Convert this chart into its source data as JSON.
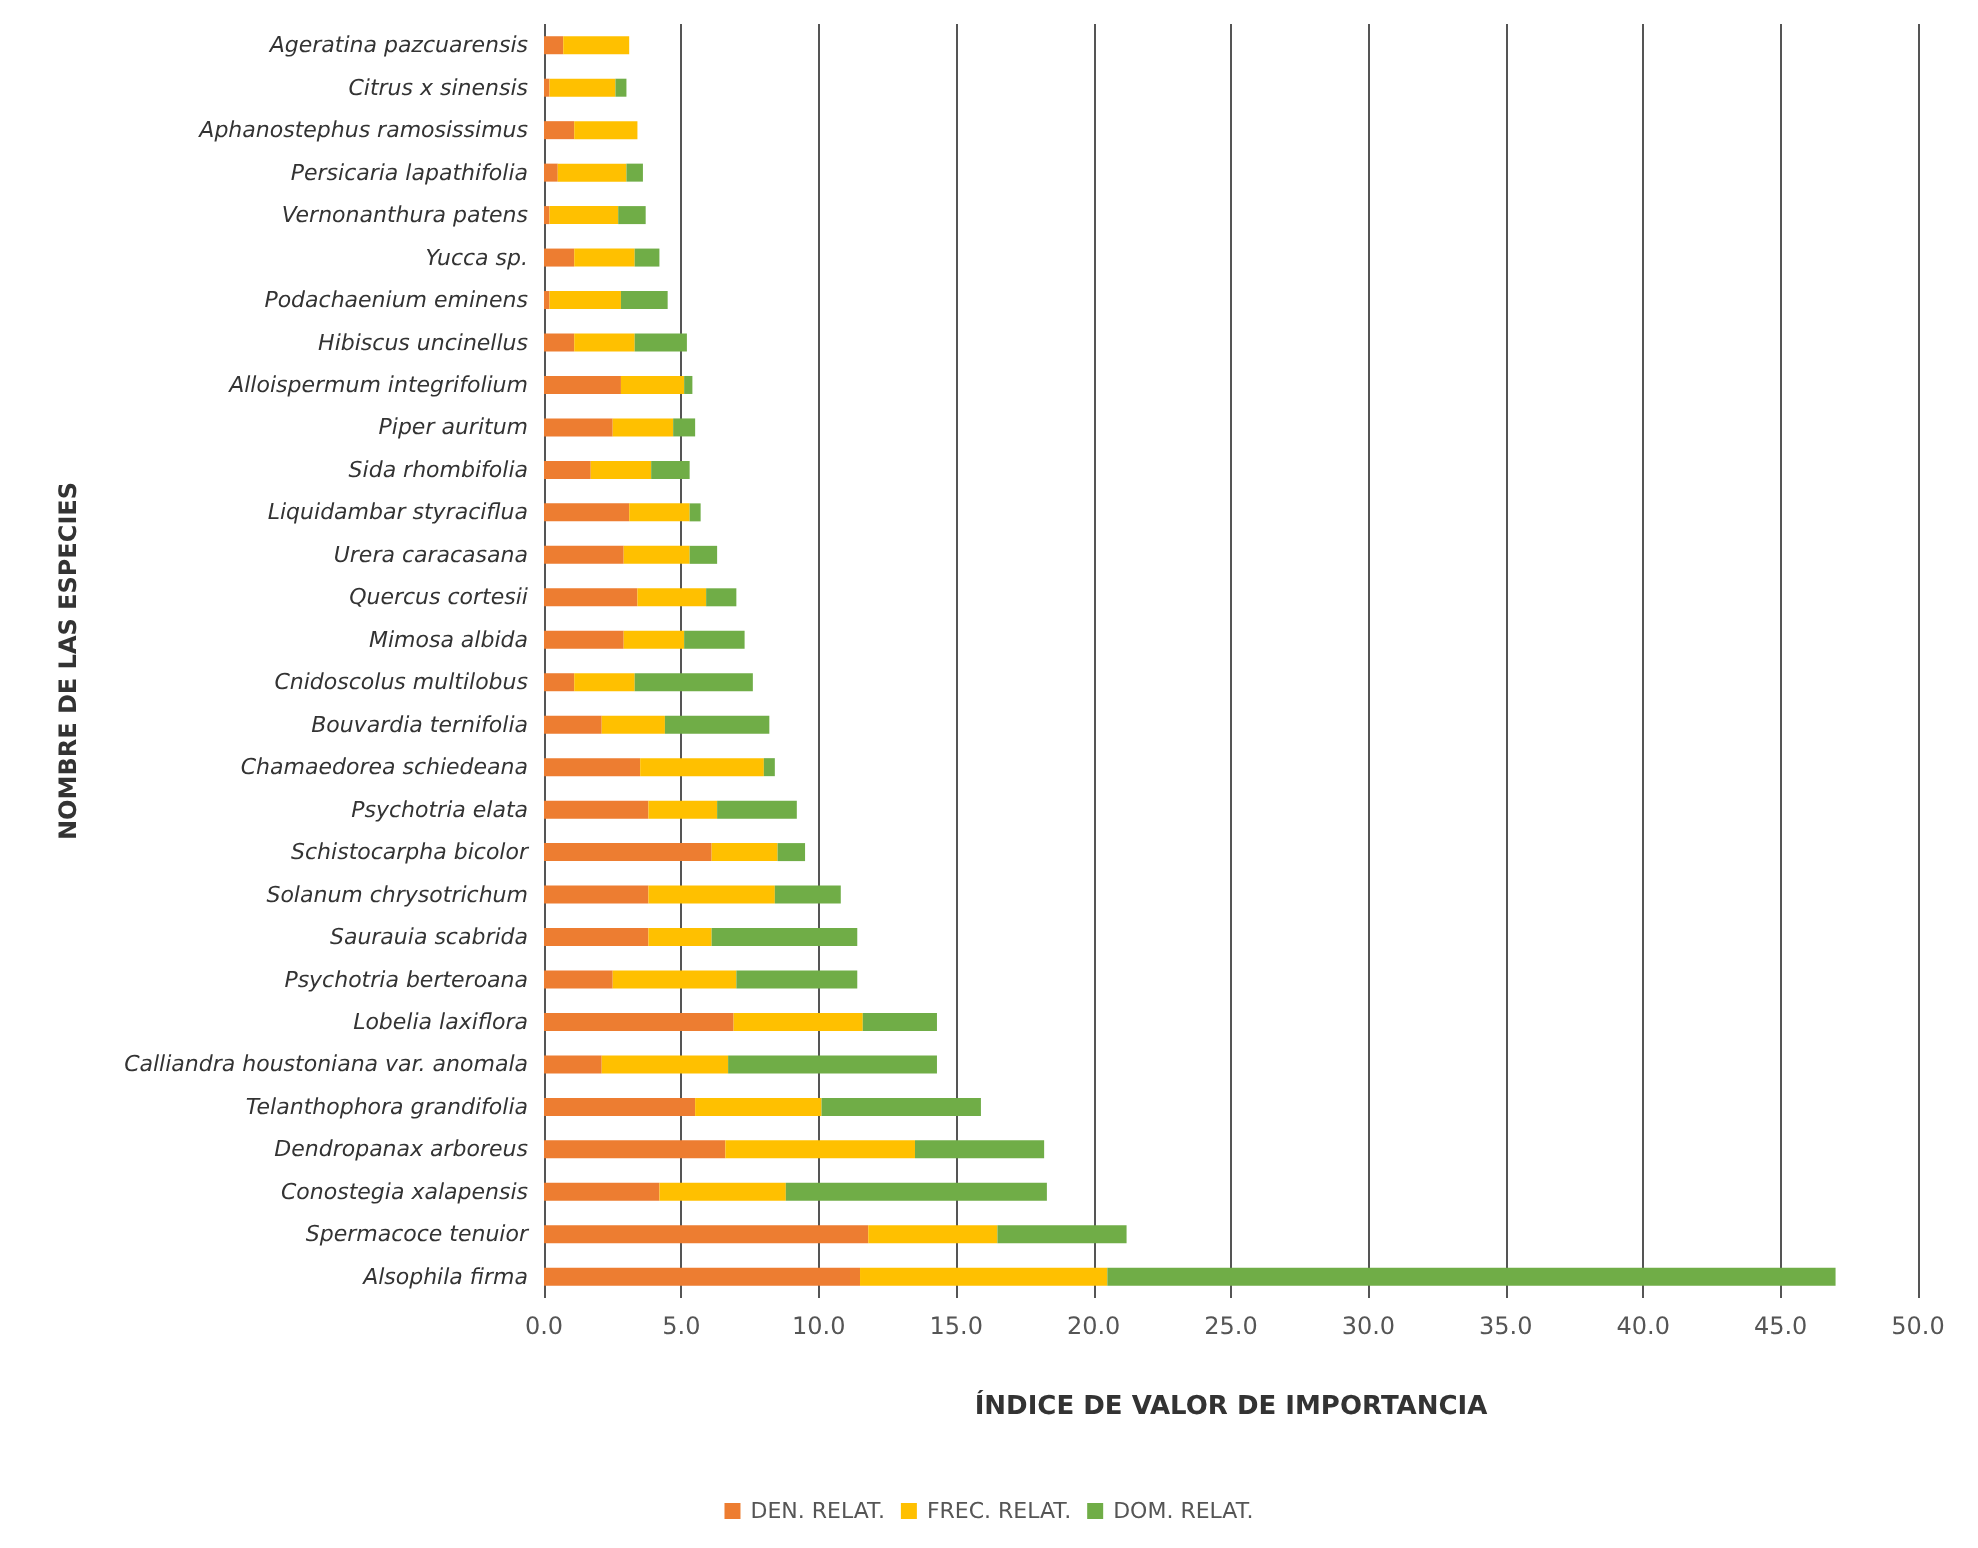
{
  "chart_data": {
    "type": "bar",
    "orientation": "horizontal",
    "stacked": true,
    "xlabel": "ÍNDICE DE VALOR DE IMPORTANCIA",
    "ylabel": "NOMBRE DE LAS ESPECIES",
    "categories": [
      "Ageratina pazcuarensis",
      "Citrus x sinensis",
      "Aphanostephus ramosissimus",
      "Persicaria lapathifolia",
      "Vernonanthura patens",
      "Yucca sp.",
      "Podachaenium eminens",
      "Hibiscus uncinellus",
      "Alloispermum integrifolium",
      "Piper auritum",
      "Sida rhombifolia",
      "Liquidambar styraciflua",
      "Urera caracasana",
      "Quercus cortesii",
      "Mimosa albida",
      "Cnidoscolus multilobus",
      "Bouvardia ternifolia",
      "Chamaedorea schiedeana",
      "Psychotria elata",
      "Schistocarpha bicolor",
      "Solanum chrysotrichum",
      "Saurauia scabrida",
      "Psychotria berteroana",
      "Lobelia laxiflora",
      "Calliandra houstoniana var. anomala",
      "Telanthophora grandifolia",
      "Dendropanax arboreus",
      "Conostegia xalapensis",
      "Spermacoce tenuior",
      "Alsophila firma"
    ],
    "series": [
      {
        "name": "DEN. RELAT.",
        "color": "#ed7d31",
        "values": [
          0.7,
          0.2,
          1.1,
          0.5,
          0.2,
          1.1,
          0.2,
          1.1,
          2.8,
          2.5,
          1.7,
          3.1,
          2.9,
          3.4,
          2.9,
          1.1,
          2.1,
          3.5,
          3.8,
          6.1,
          3.8,
          3.8,
          2.5,
          6.9,
          2.1,
          5.5,
          6.6,
          4.2,
          11.8,
          11.5
        ]
      },
      {
        "name": "FREC. RELAT.",
        "color": "#ffc000",
        "values": [
          2.4,
          2.4,
          2.3,
          2.5,
          2.5,
          2.2,
          2.6,
          2.2,
          2.3,
          2.2,
          2.2,
          2.2,
          2.4,
          2.5,
          2.2,
          2.2,
          2.3,
          4.5,
          2.5,
          2.4,
          4.6,
          2.3,
          4.5,
          4.7,
          4.6,
          4.6,
          6.9,
          4.6,
          4.7,
          9.0
        ]
      },
      {
        "name": "DOM. RELAT.",
        "color": "#70ad47",
        "values": [
          null,
          0.4,
          null,
          0.6,
          1.0,
          0.9,
          1.7,
          1.9,
          0.3,
          0.8,
          1.4,
          0.4,
          1.0,
          1.1,
          2.2,
          4.3,
          3.8,
          0.4,
          2.9,
          1.0,
          2.4,
          5.3,
          4.4,
          2.7,
          7.6,
          5.8,
          4.7,
          9.5,
          4.7,
          26.5
        ]
      }
    ],
    "xlim": [
      0,
      50
    ],
    "xticks": [
      {
        "value": 0,
        "label": "0.0"
      },
      {
        "value": 5,
        "label": "5.0"
      },
      {
        "value": 10,
        "label": "10.0"
      },
      {
        "value": 15,
        "label": "15.0"
      },
      {
        "value": 20,
        "label": "20.0"
      },
      {
        "value": 25,
        "label": "25.0"
      },
      {
        "value": 30,
        "label": "30.0"
      },
      {
        "value": 35,
        "label": "35.0"
      },
      {
        "value": 40,
        "label": "40.0"
      },
      {
        "value": 45,
        "label": "45.0"
      },
      {
        "value": 50,
        "label": "50.0"
      }
    ],
    "grid": "x",
    "legend": "bottom"
  }
}
